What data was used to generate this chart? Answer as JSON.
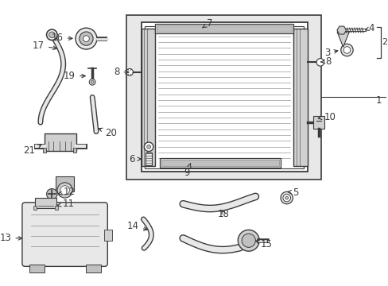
{
  "bg_color": "#ffffff",
  "lc": "#3a3a3a",
  "figsize": [
    4.89,
    3.6
  ],
  "dpi": 100,
  "xlim": [
    0,
    489
  ],
  "ylim": [
    0,
    360
  ]
}
